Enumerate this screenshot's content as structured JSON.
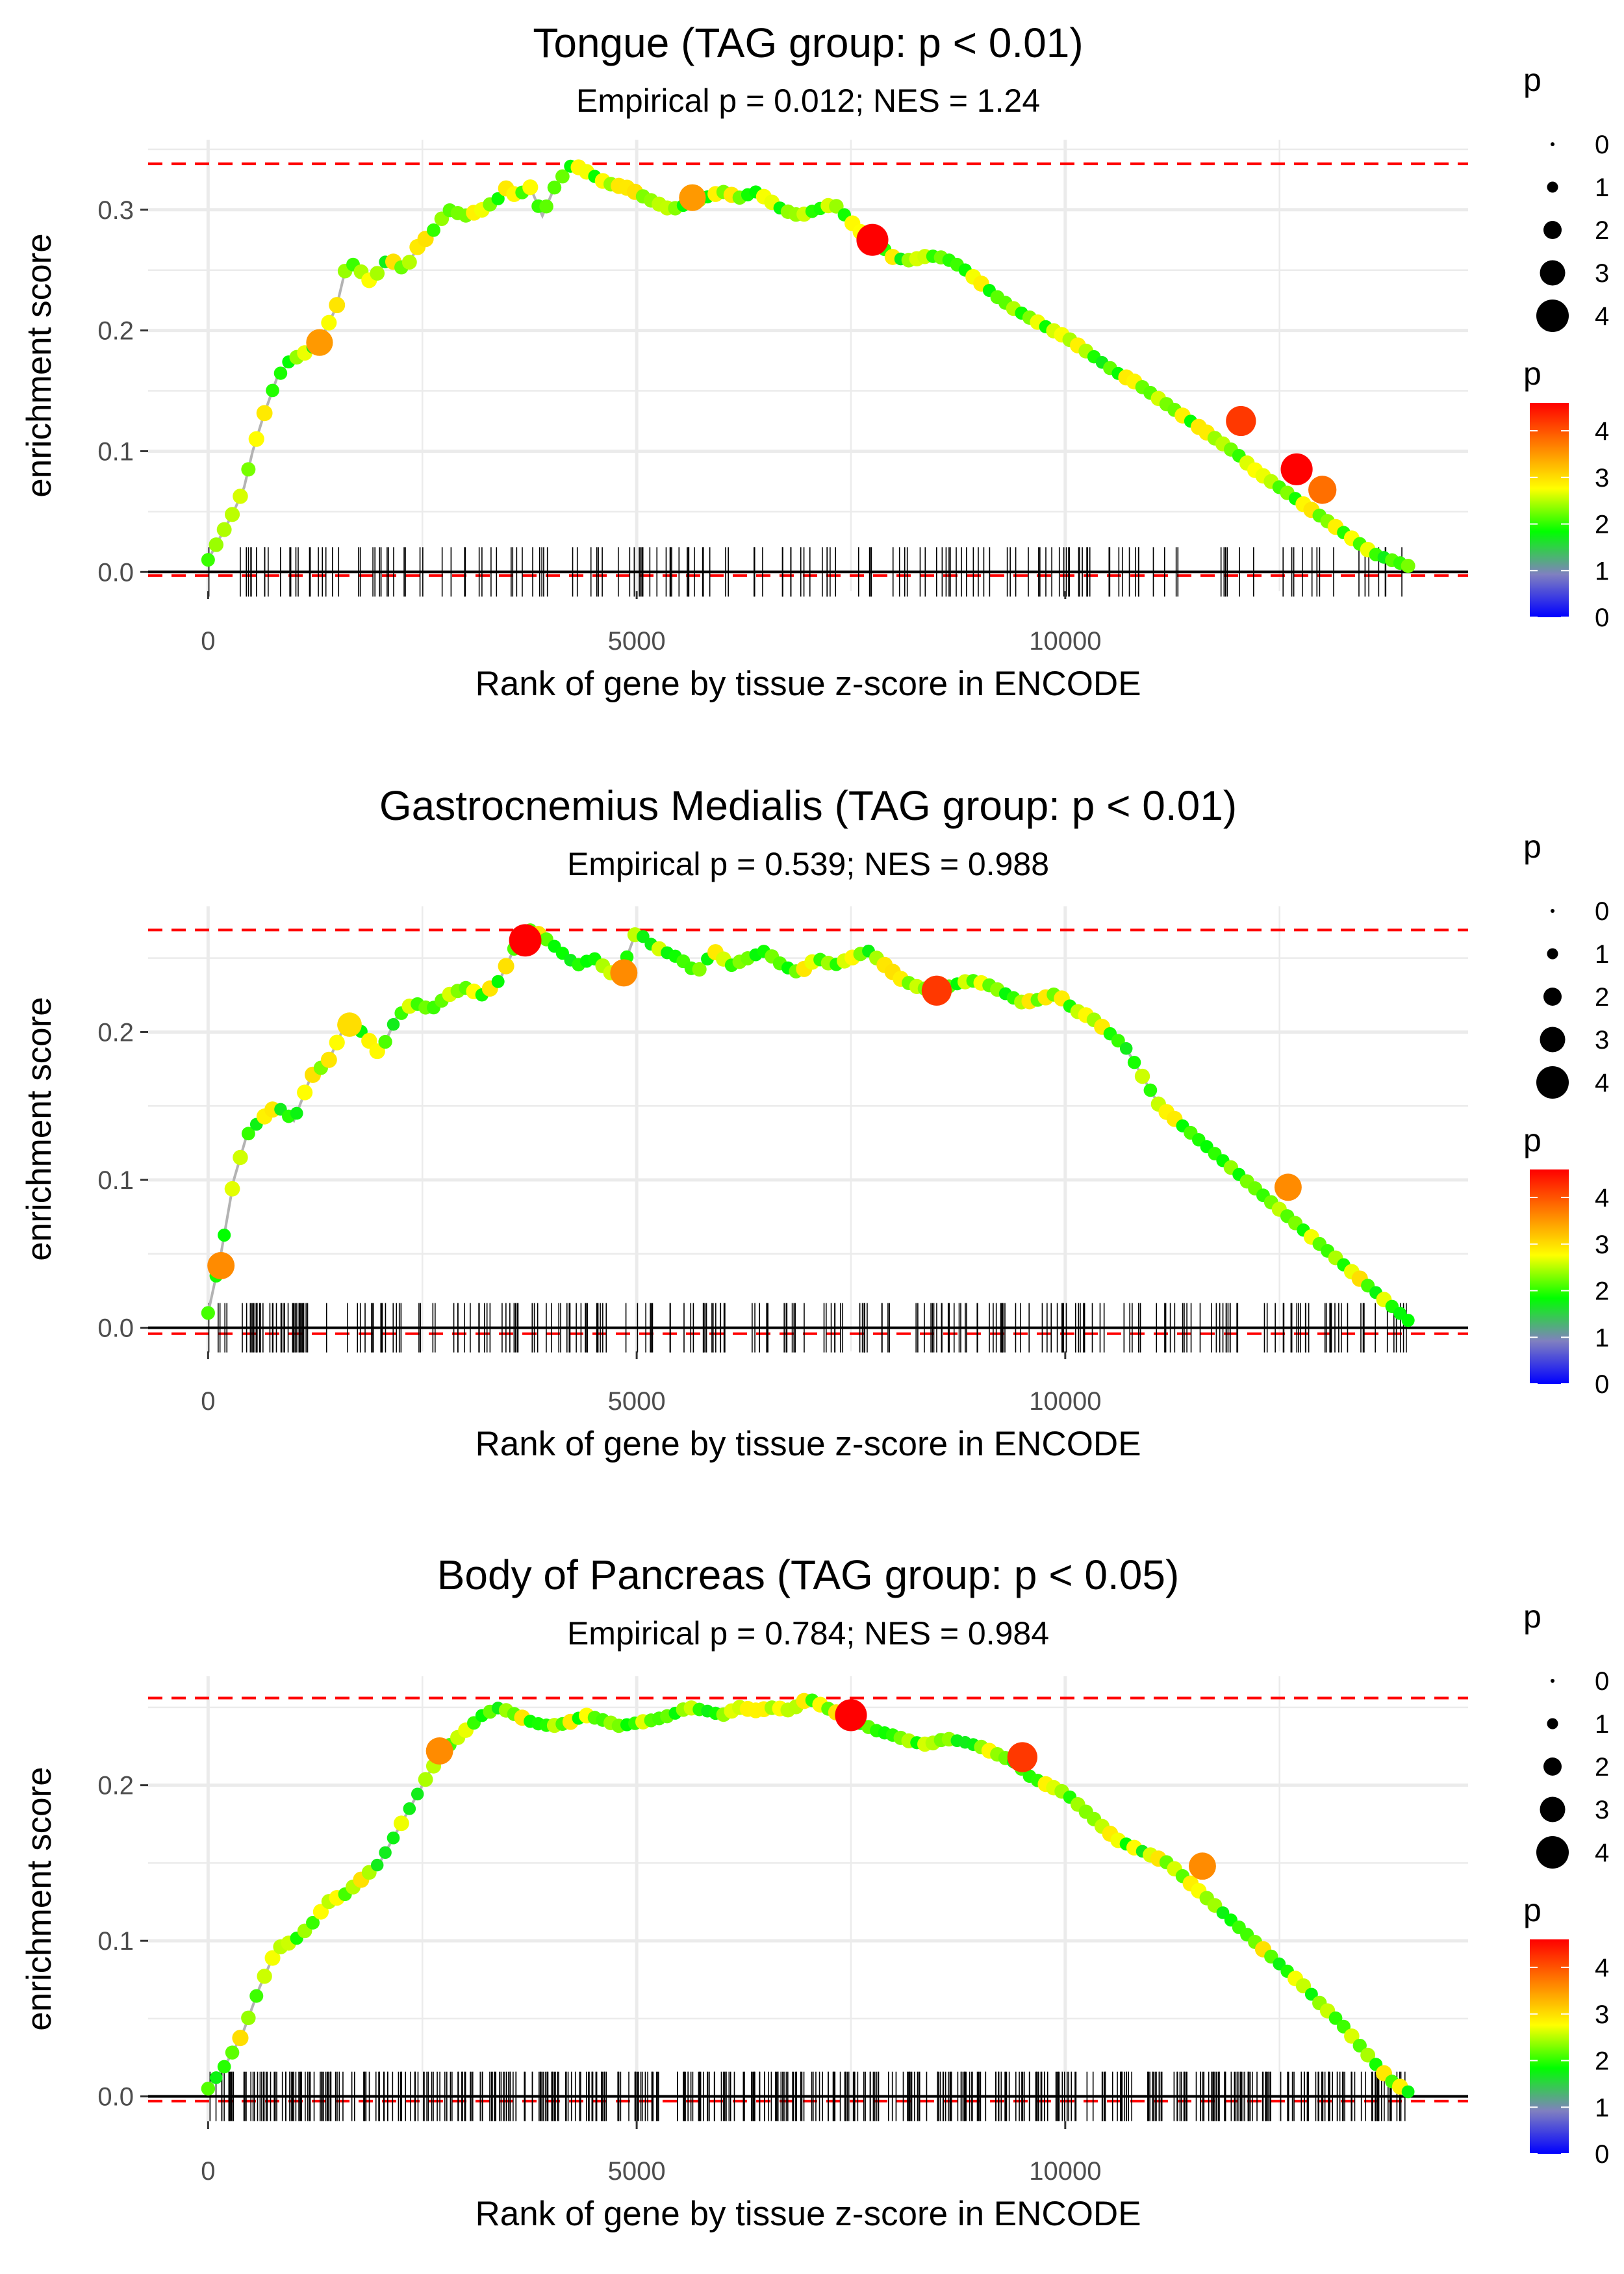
{
  "figure": {
    "description_free": true
  },
  "chart_data": [
    {
      "type": "line",
      "title": "Tongue (TAG group: p < 0.01)",
      "subtitle": "Empirical p = 0.012; NES = 1.24",
      "xlabel": "Rank of gene by tissue z-score in ENCODE",
      "ylabel": "enrichment score",
      "xlim": [
        -700,
        14700
      ],
      "ylim": [
        -0.016,
        0.358
      ],
      "xticks": [
        0,
        5000,
        10000
      ],
      "yticks": [
        0.0,
        0.1,
        0.2,
        0.3
      ],
      "ytick_labels": [
        "0.0",
        "0.1",
        "0.2",
        "0.3"
      ],
      "max_es": 0.338,
      "min_es": -0.003,
      "curve": {
        "x": [
          0,
          150,
          300,
          420,
          520,
          650,
          800,
          950,
          1100,
          1300,
          1500,
          1600,
          1700,
          1900,
          2100,
          2300,
          2450,
          2600,
          2800,
          3000,
          3200,
          3400,
          3500,
          3600,
          3750,
          3900,
          4050,
          4250,
          4450,
          4650,
          4900,
          5100,
          5400,
          5600,
          5800,
          6000,
          6200,
          6400,
          6700,
          6900,
          7100,
          7300,
          7500,
          7700,
          7850,
          8000,
          8200,
          8400,
          8600,
          8800,
          9000,
          9200,
          9400,
          9600,
          9800,
          10000,
          10200,
          10400,
          10600,
          10800,
          11000,
          11200,
          11400,
          11600,
          11800,
          12000,
          12200,
          12400,
          12600,
          12800,
          13000,
          13200,
          13400,
          13600,
          13800,
          14000
        ],
        "y": [
          0.01,
          0.03,
          0.05,
          0.07,
          0.1,
          0.13,
          0.16,
          0.175,
          0.18,
          0.19,
          0.22,
          0.25,
          0.255,
          0.24,
          0.26,
          0.25,
          0.27,
          0.28,
          0.3,
          0.295,
          0.3,
          0.31,
          0.32,
          0.31,
          0.32,
          0.295,
          0.32,
          0.338,
          0.33,
          0.322,
          0.318,
          0.31,
          0.3,
          0.305,
          0.31,
          0.315,
          0.31,
          0.315,
          0.3,
          0.295,
          0.3,
          0.305,
          0.29,
          0.275,
          0.27,
          0.26,
          0.258,
          0.262,
          0.26,
          0.252,
          0.24,
          0.228,
          0.218,
          0.21,
          0.202,
          0.195,
          0.185,
          0.175,
          0.165,
          0.158,
          0.148,
          0.138,
          0.128,
          0.118,
          0.108,
          0.098,
          0.085,
          0.075,
          0.065,
          0.055,
          0.045,
          0.035,
          0.025,
          0.015,
          0.01,
          0.005
        ]
      },
      "highlights": [
        {
          "x": 1300,
          "y": 0.19,
          "p": 3.5
        },
        {
          "x": 5650,
          "y": 0.31,
          "p": 3.5
        },
        {
          "x": 7750,
          "y": 0.275,
          "p": 4.6
        },
        {
          "x": 12050,
          "y": 0.125,
          "p": 4.2
        },
        {
          "x": 12700,
          "y": 0.085,
          "p": 4.6
        },
        {
          "x": 13000,
          "y": 0.068,
          "p": 3.8
        }
      ],
      "ticks_seed": 11,
      "ticks_count": 170,
      "legend": {
        "size_title": "p",
        "size_labels": [
          "0",
          "1",
          "2",
          "3",
          "4"
        ],
        "color_title": "p",
        "color_labels": [
          "4",
          "3",
          "2",
          "1",
          "0"
        ]
      }
    },
    {
      "type": "line",
      "title": "Gastrocnemius Medialis (TAG group: p < 0.01)",
      "subtitle": "Empirical p = 0.539; NES = 0.988",
      "xlabel": "Rank of gene by tissue z-score in ENCODE",
      "ylabel": "enrichment score",
      "xlim": [
        -700,
        14700
      ],
      "ylim": [
        -0.016,
        0.285
      ],
      "xticks": [
        0,
        5000,
        10000
      ],
      "yticks": [
        0.0,
        0.1,
        0.2
      ],
      "ytick_labels": [
        "0.0",
        "0.1",
        "0.2"
      ],
      "max_es": 0.269,
      "min_es": -0.004,
      "curve": {
        "x": [
          0,
          150,
          300,
          450,
          600,
          800,
          1000,
          1200,
          1400,
          1600,
          1800,
          2000,
          2200,
          2400,
          2600,
          2800,
          3000,
          3200,
          3400,
          3600,
          3750,
          3900,
          4100,
          4300,
          4500,
          4700,
          4850,
          5000,
          5150,
          5300,
          5500,
          5700,
          5900,
          6100,
          6300,
          6500,
          6700,
          6900,
          7100,
          7300,
          7500,
          7700,
          7900,
          8100,
          8300,
          8500,
          8700,
          8900,
          9100,
          9300,
          9500,
          9700,
          9900,
          10100,
          10300,
          10500,
          10700,
          10900,
          11100,
          11300,
          11500,
          11700,
          11900,
          12100,
          12300,
          12500,
          12700,
          12900,
          13100,
          13300,
          13500,
          13700,
          13900,
          14000
        ],
        "y": [
          0.01,
          0.05,
          0.1,
          0.13,
          0.14,
          0.15,
          0.14,
          0.17,
          0.18,
          0.205,
          0.2,
          0.185,
          0.21,
          0.22,
          0.215,
          0.225,
          0.23,
          0.225,
          0.235,
          0.26,
          0.269,
          0.265,
          0.255,
          0.245,
          0.25,
          0.24,
          0.245,
          0.269,
          0.26,
          0.255,
          0.25,
          0.24,
          0.255,
          0.245,
          0.25,
          0.255,
          0.245,
          0.24,
          0.25,
          0.245,
          0.25,
          0.255,
          0.245,
          0.235,
          0.23,
          0.228,
          0.232,
          0.235,
          0.232,
          0.226,
          0.22,
          0.222,
          0.226,
          0.215,
          0.21,
          0.2,
          0.19,
          0.17,
          0.15,
          0.14,
          0.13,
          0.12,
          0.11,
          0.1,
          0.09,
          0.08,
          0.07,
          0.06,
          0.05,
          0.04,
          0.03,
          0.02,
          0.01,
          0.005
        ]
      },
      "highlights": [
        {
          "x": 150,
          "y": 0.042,
          "p": 3.6
        },
        {
          "x": 1650,
          "y": 0.205,
          "p": 3.0
        },
        {
          "x": 3700,
          "y": 0.262,
          "p": 4.7
        },
        {
          "x": 4850,
          "y": 0.24,
          "p": 3.6
        },
        {
          "x": 8500,
          "y": 0.228,
          "p": 4.2
        },
        {
          "x": 12600,
          "y": 0.095,
          "p": 3.6
        }
      ],
      "ticks_seed": 23,
      "ticks_count": 260,
      "legend": {
        "size_title": "p",
        "size_labels": [
          "0",
          "1",
          "2",
          "3",
          "4"
        ],
        "color_title": "p",
        "color_labels": [
          "4",
          "3",
          "2",
          "1",
          "0"
        ]
      }
    },
    {
      "type": "line",
      "title": "Body of Pancreas (TAG group: p < 0.05)",
      "subtitle": "Empirical p = 0.784; NES = 0.984",
      "xlabel": "Rank of gene by tissue z-score in ENCODE",
      "ylabel": "enrichment score",
      "xlim": [
        -700,
        14700
      ],
      "ylim": [
        -0.016,
        0.27
      ],
      "xticks": [
        0,
        5000,
        10000
      ],
      "yticks": [
        0.0,
        0.1,
        0.2
      ],
      "ytick_labels": [
        "0.0",
        "0.1",
        "0.2"
      ],
      "max_es": 0.256,
      "min_es": -0.003,
      "curve": {
        "x": [
          0,
          200,
          400,
          600,
          800,
          1000,
          1200,
          1400,
          1600,
          1800,
          2000,
          2200,
          2400,
          2600,
          2800,
          3000,
          3200,
          3400,
          3600,
          3800,
          4000,
          4200,
          4400,
          4600,
          4800,
          5000,
          5200,
          5400,
          5600,
          5800,
          6000,
          6200,
          6400,
          6600,
          6800,
          7000,
          7200,
          7400,
          7600,
          7800,
          8000,
          8200,
          8400,
          8600,
          8800,
          9000,
          9200,
          9400,
          9600,
          9800,
          10000,
          10200,
          10400,
          10600,
          10800,
          11000,
          11200,
          11400,
          11600,
          11800,
          12000,
          12200,
          12400,
          12600,
          12800,
          13000,
          13200,
          13400,
          13600,
          13800,
          14000
        ],
        "y": [
          0.005,
          0.02,
          0.04,
          0.07,
          0.095,
          0.1,
          0.11,
          0.125,
          0.13,
          0.14,
          0.15,
          0.17,
          0.19,
          0.21,
          0.225,
          0.235,
          0.245,
          0.25,
          0.245,
          0.24,
          0.238,
          0.24,
          0.245,
          0.242,
          0.238,
          0.24,
          0.242,
          0.245,
          0.25,
          0.248,
          0.245,
          0.25,
          0.248,
          0.25,
          0.248,
          0.256,
          0.25,
          0.245,
          0.24,
          0.235,
          0.232,
          0.228,
          0.226,
          0.23,
          0.228,
          0.225,
          0.22,
          0.215,
          0.205,
          0.2,
          0.195,
          0.185,
          0.175,
          0.165,
          0.16,
          0.155,
          0.15,
          0.14,
          0.13,
          0.12,
          0.11,
          0.1,
          0.09,
          0.08,
          0.07,
          0.058,
          0.048,
          0.035,
          0.022,
          0.01,
          0.003
        ]
      },
      "highlights": [
        {
          "x": 2700,
          "y": 0.222,
          "p": 3.6
        },
        {
          "x": 7500,
          "y": 0.245,
          "p": 4.6
        },
        {
          "x": 9500,
          "y": 0.218,
          "p": 4.2
        },
        {
          "x": 11600,
          "y": 0.148,
          "p": 3.6
        }
      ],
      "ticks_seed": 37,
      "ticks_count": 520,
      "legend": {
        "size_title": "p",
        "size_labels": [
          "0",
          "1",
          "2",
          "3",
          "4"
        ],
        "color_title": "p",
        "color_labels": [
          "4",
          "3",
          "2",
          "1",
          "0"
        ]
      }
    }
  ],
  "colors": {
    "panel_bg": "#ffffff",
    "grid": "#ebebeb",
    "line": "#b3b3b3",
    "dashed": "#ff0000",
    "zero_line": "#000000",
    "gradient": [
      "#0000ff",
      "#8080c0",
      "#00ff00",
      "#ffff00",
      "#ff8000",
      "#ff0000"
    ]
  }
}
